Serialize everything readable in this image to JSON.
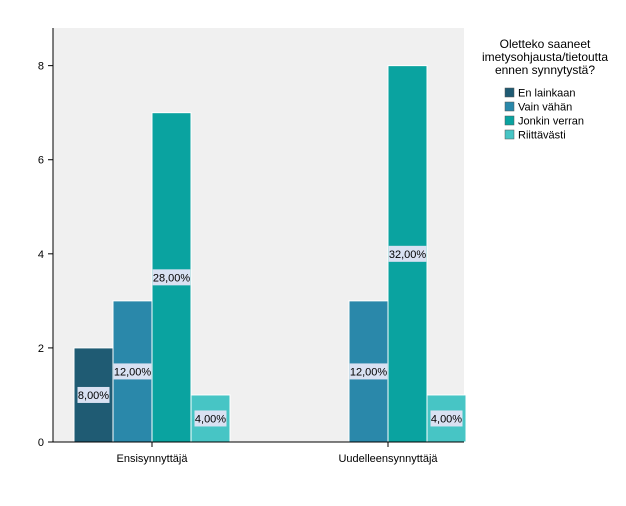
{
  "chart_data": {
    "type": "bar",
    "categories": [
      "Ensisynnyttäjä",
      "Uudelleensynnyttäjä"
    ],
    "series": [
      {
        "name": "En lainkaan",
        "values": [
          2,
          0
        ],
        "labels": [
          "8,00%",
          ""
        ]
      },
      {
        "name": "Vain vähän",
        "values": [
          3,
          3
        ],
        "labels": [
          "12,00%",
          "12,00%"
        ]
      },
      {
        "name": "Jonkin verran",
        "values": [
          7,
          8
        ],
        "labels": [
          "28,00%",
          "32,00%"
        ]
      },
      {
        "name": "Riittävästi",
        "values": [
          1,
          1
        ],
        "labels": [
          "4,00%",
          "4,00%"
        ]
      }
    ],
    "yticks": [
      "0",
      "2",
      "4",
      "6",
      "8"
    ],
    "ylim": [
      0,
      8.8
    ],
    "legend": {
      "title_lines": [
        "Oletteko saaneet",
        "imetysohjausta/tietoutta",
        "ennen synnytystä?"
      ],
      "position": "top-right"
    },
    "grid": false
  },
  "colors": {
    "plot_background": "#f0f0f0",
    "axis": "#000000",
    "bar_border": "#ffffff",
    "label_background": "#d9e1f2",
    "series": [
      "#1f5b73",
      "#2a88aa",
      "#0aa3a0",
      "#47c5c5"
    ]
  }
}
